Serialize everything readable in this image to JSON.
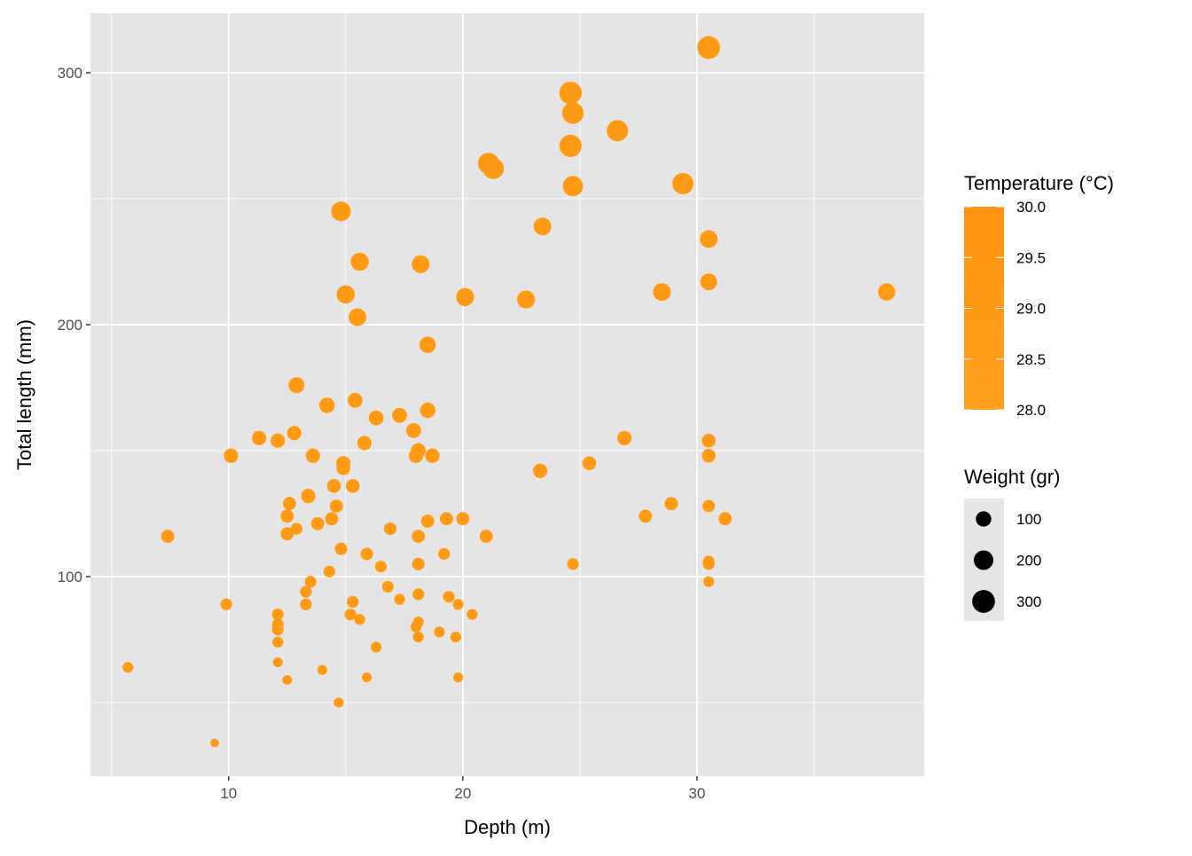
{
  "chart_data": {
    "type": "scatter",
    "xlabel": "Depth (m)",
    "ylabel": "Total length (mm)",
    "xlim": [
      4.1,
      39.7
    ],
    "ylim": [
      20.8,
      323.6
    ],
    "xticks": [
      10,
      20,
      30
    ],
    "xminor": [
      5,
      15,
      25,
      35
    ],
    "yticks": [
      100,
      200,
      300
    ],
    "yminor": [
      50,
      150,
      250
    ],
    "grid": true,
    "panel_background": "#E5E5E5",
    "point_color": "#FF9A14",
    "legend_position": "right",
    "color_legend": {
      "title": "Temperature (°C)",
      "labels": [
        "30.0",
        "29.5",
        "29.0",
        "28.5",
        "28.0"
      ],
      "low_color": "#FFA01E",
      "high_color": "#FF9410"
    },
    "size_legend": {
      "title": "Weight (gr)",
      "labels": [
        "100",
        "200",
        "300"
      ],
      "values": [
        100,
        200,
        300
      ]
    },
    "points": {
      "x": [
        30.5,
        24.6,
        24.7,
        26.6,
        24.6,
        21.1,
        21.3,
        29.4,
        24.7,
        14.8,
        23.4,
        30.5,
        15.6,
        18.2,
        15.0,
        28.5,
        38.1,
        30.5,
        20.1,
        22.7,
        15.5,
        18.5,
        12.9,
        14.2,
        15.4,
        16.3,
        17.3,
        18.5,
        11.3,
        12.8,
        12.1,
        17.9,
        10.1,
        13.6,
        15.8,
        18.1,
        18.0,
        18.7,
        26.9,
        30.5,
        30.5,
        14.9,
        14.9,
        23.3,
        25.4,
        13.4,
        14.5,
        15.3,
        12.6,
        14.6,
        12.5,
        14.4,
        13.8,
        12.9,
        12.5,
        18.5,
        19.3,
        20.0,
        16.9,
        18.1,
        21.0,
        7.4,
        27.8,
        28.9,
        30.5,
        31.2,
        14.8,
        15.9,
        19.2,
        16.5,
        18.1,
        24.7,
        30.5,
        30.5,
        14.3,
        30.5,
        13.5,
        16.8,
        13.3,
        18.1,
        19.4,
        17.3,
        15.3,
        9.9,
        13.3,
        19.8,
        12.1,
        15.2,
        20.4,
        15.6,
        18.1,
        18.0,
        12.1,
        12.1,
        19.0,
        18.1,
        19.7,
        12.1,
        16.3,
        5.7,
        12.1,
        14.0,
        12.5,
        15.9,
        19.8,
        14.7,
        9.4
      ],
      "y": [
        310,
        292,
        284,
        277,
        271,
        264,
        262,
        256,
        255,
        245,
        239,
        234,
        225,
        224,
        212,
        213,
        213,
        217,
        211,
        210,
        203,
        192,
        176,
        168,
        170,
        163,
        164,
        166,
        155,
        157,
        154,
        158,
        148,
        148,
        153,
        150,
        148,
        148,
        155,
        154,
        148,
        145,
        143,
        142,
        145,
        132,
        136,
        136,
        129,
        128,
        124,
        123,
        121,
        119,
        117,
        122,
        123,
        123,
        119,
        116,
        116,
        116,
        124,
        129,
        128,
        123,
        111,
        109,
        109,
        104,
        105,
        105,
        106,
        105,
        102,
        98,
        98,
        96,
        94,
        93,
        92,
        91,
        90,
        89,
        89,
        89,
        85,
        85,
        85,
        83,
        82,
        80,
        81,
        79,
        78,
        76,
        76,
        74,
        72,
        64,
        66,
        63,
        59,
        60,
        60,
        50,
        34
      ],
      "weight": [
        300,
        290,
        260,
        250,
        280,
        250,
        250,
        250,
        220,
        200,
        150,
        150,
        160,
        150,
        160,
        150,
        140,
        130,
        160,
        160,
        150,
        120,
        110,
        100,
        90,
        90,
        90,
        100,
        80,
        80,
        80,
        90,
        80,
        80,
        80,
        90,
        80,
        80,
        80,
        70,
        70,
        80,
        70,
        80,
        70,
        80,
        70,
        70,
        60,
        60,
        60,
        60,
        60,
        40,
        60,
        60,
        60,
        60,
        50,
        60,
        60,
        60,
        60,
        60,
        50,
        60,
        50,
        50,
        40,
        40,
        50,
        40,
        40,
        40,
        40,
        30,
        40,
        40,
        40,
        40,
        40,
        30,
        40,
        40,
        40,
        30,
        40,
        40,
        30,
        30,
        30,
        30,
        40,
        40,
        30,
        30,
        30,
        30,
        30,
        30,
        20,
        20,
        20,
        20,
        20,
        20,
        10
      ]
    }
  }
}
